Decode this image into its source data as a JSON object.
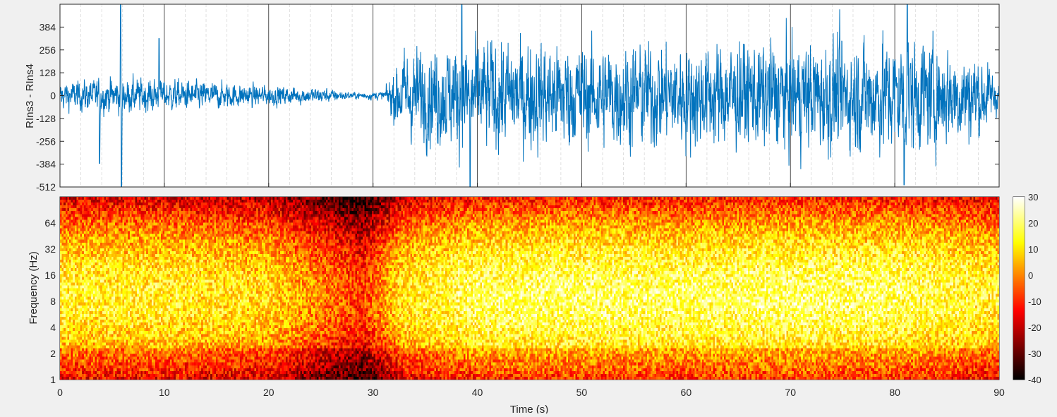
{
  "chart_data": [
    {
      "type": "line",
      "ylabel": "RIns3 - RIns4",
      "xlabel": "",
      "xlim": [
        0,
        90
      ],
      "ylim": [
        -512,
        512
      ],
      "x_ticks": [
        0,
        10,
        20,
        30,
        40,
        50,
        60,
        70,
        80,
        90
      ],
      "y_ticks": [
        -512,
        -384,
        -256,
        -128,
        0,
        128,
        256,
        384
      ],
      "y_tick_labels": [
        "-512",
        "-384",
        "-256",
        "-128",
        "0",
        "128",
        "256",
        "384"
      ],
      "grid": "major x lines (solid), minor x lines (dashed)",
      "color": "#0072bd",
      "amplitude_envelope": {
        "t": [
          0,
          5,
          10,
          15,
          20,
          25,
          28,
          31,
          33,
          40,
          50,
          60,
          70,
          80,
          88,
          90
        ],
        "amplitude": [
          60,
          80,
          70,
          60,
          45,
          35,
          15,
          20,
          200,
          250,
          230,
          230,
          240,
          260,
          200,
          70
        ]
      },
      "spikes": [
        {
          "t": 3.8,
          "value": -380
        },
        {
          "t": 5.8,
          "value": 512
        },
        {
          "t": 5.9,
          "value": -512
        },
        {
          "t": 9.5,
          "value": 320
        },
        {
          "t": 38.5,
          "value": 512
        },
        {
          "t": 39.3,
          "value": -512
        },
        {
          "t": 81.2,
          "value": 512
        },
        {
          "t": 80.9,
          "value": -500
        }
      ]
    },
    {
      "type": "heatmap",
      "ylabel": "Frequency (Hz)",
      "xlabel": "Time (s)",
      "xlim": [
        0,
        90
      ],
      "ylim": [
        1,
        128
      ],
      "yscale": "log2",
      "x_ticks": [
        0,
        10,
        20,
        30,
        40,
        50,
        60,
        70,
        80,
        90
      ],
      "y_ticks": [
        1,
        2,
        4,
        8,
        16,
        32,
        64
      ],
      "y_tick_labels": [
        "1",
        "2",
        "4",
        "8",
        "16",
        "32",
        "64"
      ],
      "colormap": "hot",
      "colorbar": {
        "clim": [
          -40,
          30
        ],
        "ticks": [
          -40,
          -30,
          -20,
          -10,
          0,
          10,
          20,
          30
        ],
        "tick_labels": [
          "-40",
          "-30",
          "-20",
          "-10",
          "0",
          "10",
          "20",
          "30"
        ],
        "location": "right"
      },
      "power_profile": {
        "t": [
          0,
          10,
          20,
          26,
          29,
          33,
          40,
          50,
          60,
          70,
          80,
          90
        ],
        "baseline_db": [
          8,
          8,
          4,
          -8,
          -14,
          6,
          13,
          14,
          13,
          14,
          13,
          8
        ]
      }
    }
  ],
  "colors": {
    "background": "#f0f0f0",
    "axes_bg": "#ffffff",
    "axis": "#262626",
    "grid_major": "#262626",
    "grid_minor": "#d9d9d9",
    "signal": "#0072bd"
  }
}
